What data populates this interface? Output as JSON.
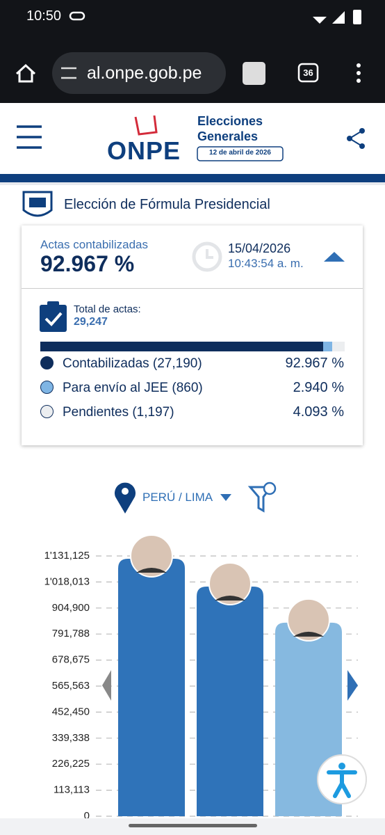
{
  "status_bar": {
    "time": "10:50"
  },
  "browser": {
    "url": "al.onpe.gob.pe",
    "tabs": "36"
  },
  "header": {
    "line1": "Elecciones",
    "line2": "Generales",
    "logo": "ONPE",
    "date": "12 de abril de 2026"
  },
  "section_title": "Elección de Fórmula Presidencial",
  "summary": {
    "label": "Actas contabilizadas",
    "percent": "92.967 %",
    "date": "15/04/2026",
    "time": "10:43:54 a. m.",
    "total_label": "Total de actas:",
    "total": "29,247",
    "rows": [
      {
        "label": "Contabilizadas (27,190)",
        "percent": "92.967 %",
        "color": "#0e2d5c"
      },
      {
        "label": "Para envío al JEE (860)",
        "percent": "2.940 %",
        "color": "#7fb5e4"
      },
      {
        "label": "Pendientes (1,197)",
        "percent": "4.093 %",
        "color": "#eceef0"
      }
    ]
  },
  "location": "PERÚ / LIMA",
  "chart_data": {
    "type": "bar",
    "categories": [
      null,
      null,
      null
    ],
    "values": [
      1119000,
      998000,
      841000
    ],
    "colors": [
      "#2f73b9",
      "#2f73b9",
      "#86b9e0"
    ],
    "ylim": [
      0,
      1131125
    ],
    "yticks": [
      0,
      {
        "value": 113113,
        "label": "113,113"
      },
      {
        "value": 226225,
        "label": "226,225"
      },
      {
        "value": 339338,
        "label": "339,338"
      },
      {
        "value": 452450,
        "label": "452,450"
      },
      {
        "value": 565563,
        "label": "565,563"
      },
      {
        "value": 678675,
        "label": "678,675"
      },
      {
        "value": 791788,
        "label": "791,788"
      },
      {
        "value": 904900,
        "label": "904,900"
      },
      {
        "value": 1018013,
        "label": "1'018,013"
      },
      {
        "value": 1131125,
        "label": "1'131,125"
      }
    ],
    "grid": true
  }
}
